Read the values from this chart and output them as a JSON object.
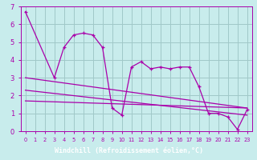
{
  "xlabel": "Windchill (Refroidissement éolien,°C)",
  "bg_color": "#c8ecec",
  "grid_color": "#a0c8c8",
  "line_color": "#aa00aa",
  "label_bg": "#9900bb",
  "x_hours": [
    0,
    1,
    2,
    3,
    4,
    5,
    6,
    7,
    8,
    9,
    10,
    11,
    12,
    13,
    14,
    15,
    16,
    17,
    18,
    19,
    20,
    21,
    22,
    23
  ],
  "series1": [
    6.7,
    null,
    null,
    3.0,
    4.7,
    5.4,
    5.5,
    5.4,
    4.7,
    1.3,
    0.9,
    3.6,
    3.9,
    3.5,
    3.6,
    3.5,
    3.6,
    3.6,
    2.5,
    1.0,
    1.0,
    0.8,
    0.1,
    1.2
  ],
  "line1_x": [
    0,
    23
  ],
  "line1_y": [
    3.0,
    1.3
  ],
  "line2_x": [
    0,
    23
  ],
  "line2_y": [
    1.7,
    1.3
  ],
  "line3_x": [
    0,
    23
  ],
  "line3_y": [
    2.3,
    0.9
  ],
  "xlim": [
    -0.5,
    23.5
  ],
  "ylim": [
    0,
    7
  ],
  "yticks": [
    0,
    1,
    2,
    3,
    4,
    5,
    6,
    7
  ]
}
